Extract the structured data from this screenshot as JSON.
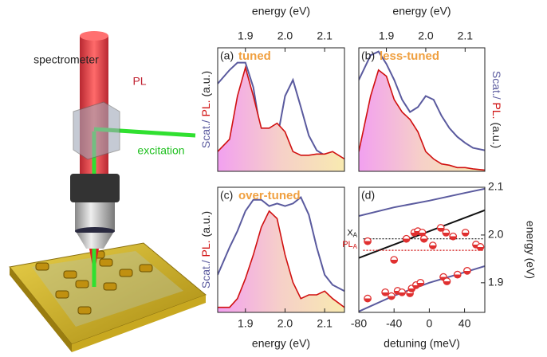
{
  "illustration": {
    "labels": [
      "spectrometer",
      "PL",
      "excitation"
    ]
  },
  "chart_data": [
    {
      "type": "line",
      "panel_label": "(a)",
      "title": "tuned",
      "title_color": "#f0a040",
      "xlabel": "energy (eV)",
      "xaxis_position": "top",
      "ylabel_parts": [
        "Scat./",
        "PL.",
        "(a.u.)"
      ],
      "ylabel_colors": [
        "#5a5a9e",
        "#d01010",
        "#222222"
      ],
      "yaxis_position": "left",
      "x": [
        1.83,
        1.86,
        1.88,
        1.9,
        1.92,
        1.94,
        1.96,
        1.98,
        2.0,
        2.02,
        2.04,
        2.06,
        2.08,
        2.1,
        2.12,
        2.15
      ],
      "xlim": [
        1.83,
        2.15
      ],
      "xticks": [
        1.9,
        {
          "value": 2,
          "label": "2.0"
        },
        2.1
      ],
      "ylim": [
        0,
        1
      ],
      "series": [
        {
          "color": "#5a5a9e",
          "values": [
            0.71,
            0.82,
            0.88,
            0.88,
            0.68,
            0.29,
            0.1,
            0.26,
            0.61,
            0.74,
            0.52,
            0.29,
            0.17,
            0.13,
            0.08,
            0.03
          ]
        },
        {
          "color": "#d01010",
          "fill": true,
          "values": [
            0.16,
            0.26,
            0.61,
            0.84,
            0.61,
            0.35,
            0.35,
            0.39,
            0.32,
            0.16,
            0.13,
            0.13,
            0.14,
            0.14,
            0.16,
            0.1
          ]
        }
      ]
    },
    {
      "type": "line",
      "panel_label": "(b)",
      "title": "less-tuned",
      "title_color": "#f0a040",
      "xlabel": "energy (eV)",
      "xaxis_position": "top",
      "ylabel_parts": [
        "Scat./",
        "PL.",
        "(a.u.)"
      ],
      "ylabel_colors": [
        "#5a5a9e",
        "#d01010",
        "#222222"
      ],
      "yaxis_position": "right",
      "x": [
        1.83,
        1.86,
        1.88,
        1.9,
        1.92,
        1.94,
        1.96,
        1.98,
        2.0,
        2.02,
        2.04,
        2.06,
        2.08,
        2.1,
        2.12,
        2.15
      ],
      "xlim": [
        1.83,
        2.15
      ],
      "xticks": [
        1.9,
        {
          "value": 2,
          "label": "2.0"
        },
        2.1
      ],
      "ylim": [
        0,
        1
      ],
      "series": [
        {
          "color": "#5a5a9e",
          "values": [
            0.74,
            0.94,
            0.97,
            0.87,
            0.74,
            0.58,
            0.48,
            0.52,
            0.61,
            0.58,
            0.45,
            0.35,
            0.28,
            0.23,
            0.19,
            0.17
          ]
        },
        {
          "color": "#d01010",
          "fill": true,
          "values": [
            0.16,
            0.61,
            0.82,
            0.77,
            0.58,
            0.48,
            0.42,
            0.32,
            0.16,
            0.1,
            0.06,
            0.05,
            0.03,
            0.03,
            0.02,
            0.01
          ]
        }
      ]
    },
    {
      "type": "line",
      "panel_label": "(c)",
      "title": "over-tuned",
      "title_color": "#f0a040",
      "xlabel": "energy (eV)",
      "xaxis_position": "bottom",
      "ylabel_parts": [
        "Scat./",
        "PL.",
        "(a.u.)"
      ],
      "ylabel_colors": [
        "#5a5a9e",
        "#d01010",
        "#222222"
      ],
      "yaxis_position": "left",
      "x": [
        1.83,
        1.86,
        1.88,
        1.9,
        1.92,
        1.94,
        1.96,
        1.98,
        2.0,
        2.02,
        2.04,
        2.06,
        2.08,
        2.1,
        2.12,
        2.15
      ],
      "xlim": [
        1.83,
        2.15
      ],
      "xticks": [
        1.9,
        {
          "value": 2,
          "label": "2.0"
        },
        2.1
      ],
      "ylim": [
        0,
        1
      ],
      "series": [
        {
          "color": "#5a5a9e",
          "values": [
            0.3,
            0.52,
            0.65,
            0.81,
            0.9,
            0.9,
            0.85,
            0.87,
            0.85,
            0.87,
            0.92,
            0.78,
            0.52,
            0.3,
            0.22,
            0.17
          ]
        },
        {
          "color": "#d01010",
          "fill": true,
          "values": [
            0.04,
            0.04,
            0.11,
            0.27,
            0.46,
            0.68,
            0.81,
            0.75,
            0.46,
            0.24,
            0.11,
            0.14,
            0.14,
            0.17,
            0.11,
            0.04
          ]
        }
      ]
    },
    {
      "type": "scatter",
      "panel_label": "(d)",
      "xlabel": "detuning (meV)",
      "xaxis_position": "bottom",
      "ylabel": "energy (eV)",
      "yaxis_position": "right",
      "xlim": [
        -80,
        63
      ],
      "xticks": [
        -80,
        -40,
        0,
        40
      ],
      "ylim": [
        1.838,
        2.1
      ],
      "yticks": [
        1.9,
        {
          "value": 2,
          "label": "2.0"
        },
        2.1
      ],
      "series": [
        {
          "type": "line",
          "color": "#5a5a9e",
          "x": [
            -80,
            -40,
            0,
            40,
            63
          ],
          "values": [
            2.04,
            2.058,
            2.072,
            2.088,
            2.097
          ]
        },
        {
          "type": "line",
          "color": "#5a5a9e",
          "x": [
            -80,
            -40,
            0,
            40,
            63
          ],
          "values": [
            1.84,
            1.873,
            1.9,
            1.922,
            1.935
          ]
        },
        {
          "type": "line",
          "color": "#111111",
          "x": [
            -80,
            63
          ],
          "values": [
            1.952,
            2.052
          ]
        },
        {
          "type": "line",
          "color": "#111111",
          "dash": true,
          "label": "X",
          "label_sub": "A",
          "x": [
            -75,
            63
          ],
          "values": [
            1.992,
            1.992
          ]
        },
        {
          "type": "line",
          "color": "#d01010",
          "dash": true,
          "label": "PL",
          "label_sub": "A",
          "x": [
            -75,
            63
          ],
          "values": [
            1.968,
            1.968
          ]
        },
        {
          "type": "scatter",
          "color": "#e03030",
          "x": [
            -70,
            -40,
            -17,
            -13,
            -8,
            -6,
            13,
            19,
            27,
            41,
            53,
            58,
            4,
            -26,
            -70,
            -50,
            -36,
            -31,
            -22,
            -20,
            -15,
            -10,
            16,
            20,
            32,
            43,
            -43
          ],
          "values": [
            1.987,
            1.948,
            2.005,
            2.008,
            2.005,
            1.992,
            2.015,
            2.005,
            1.997,
            2.005,
            1.98,
            1.975,
            1.978,
            1.992,
            1.867,
            1.88,
            1.883,
            1.88,
            1.878,
            1.888,
            1.895,
            1.9,
            1.912,
            1.903,
            1.917,
            1.925,
            1.872
          ]
        }
      ]
    }
  ]
}
